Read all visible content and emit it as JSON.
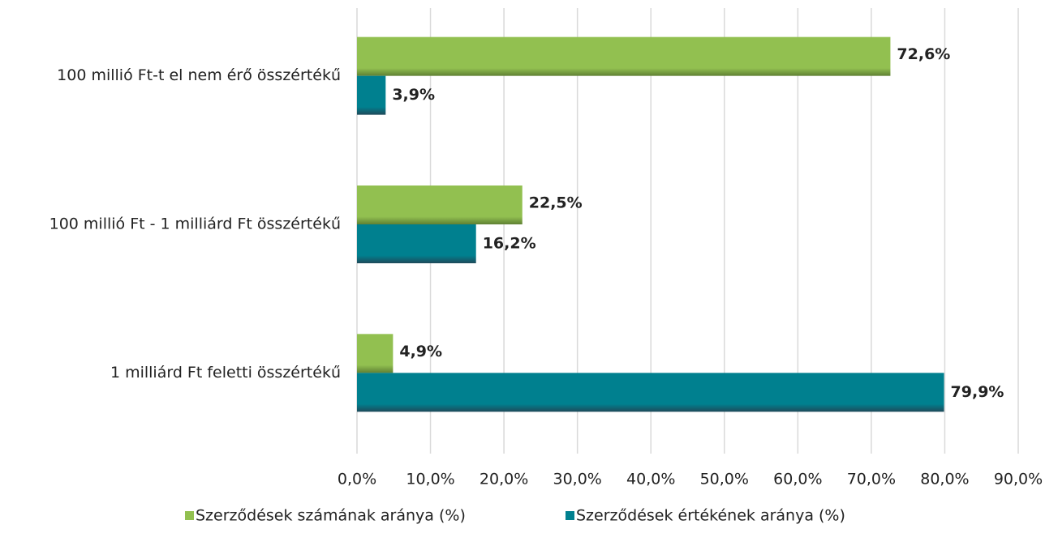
{
  "chart_data": {
    "type": "bar",
    "orientation": "horizontal",
    "categories": [
      "100 millió Ft-t el nem érő összértékű",
      "100 millió Ft - 1 milliárd Ft összértékű",
      "1 milliárd Ft feletti összértékű"
    ],
    "series": [
      {
        "name": "Szerződések számának aránya (%)",
        "color": "#92c050",
        "label_color": "#4a6b2a",
        "values": [
          72.6,
          22.5,
          4.9
        ],
        "value_labels": [
          "72,6%",
          "22,5%",
          "4,9%"
        ]
      },
      {
        "name": "Szerződések értékének aránya (%)",
        "color": "#00808f",
        "label_color": "#2f6079",
        "values": [
          3.9,
          16.2,
          79.9
        ],
        "value_labels": [
          "3,9%",
          "16,2%",
          "79,9%"
        ]
      }
    ],
    "xlim": [
      0,
      90
    ],
    "xticks": [
      {
        "value": 0,
        "label": "0,0%"
      },
      {
        "value": 10,
        "label": "10,0%"
      },
      {
        "value": 20,
        "label": "20,0%"
      },
      {
        "value": 30,
        "label": "30,0%"
      },
      {
        "value": 40,
        "label": "40,0%"
      },
      {
        "value": 50,
        "label": "50,0%"
      },
      {
        "value": 60,
        "label": "60,0%"
      },
      {
        "value": 70,
        "label": "70,0%"
      },
      {
        "value": 80,
        "label": "80,0%"
      },
      {
        "value": 90,
        "label": "90,0%"
      }
    ],
    "grid": true,
    "legend": "bottom"
  }
}
